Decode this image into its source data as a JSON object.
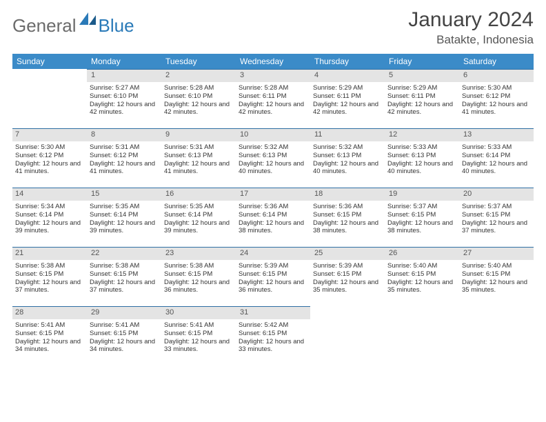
{
  "logo": {
    "general": "General",
    "blue": "Blue"
  },
  "title": "January 2024",
  "location": "Batakte, Indonesia",
  "header_bg": "#3b8bc8",
  "daynum_bg": "#e4e4e4",
  "daynum_border": "#2d6ea3",
  "weekdays": [
    "Sunday",
    "Monday",
    "Tuesday",
    "Wednesday",
    "Thursday",
    "Friday",
    "Saturday"
  ],
  "first_day_index": 1,
  "days": [
    {
      "n": "1",
      "sr": "5:27 AM",
      "ss": "6:10 PM",
      "dl": "12 hours and 42 minutes."
    },
    {
      "n": "2",
      "sr": "5:28 AM",
      "ss": "6:10 PM",
      "dl": "12 hours and 42 minutes."
    },
    {
      "n": "3",
      "sr": "5:28 AM",
      "ss": "6:11 PM",
      "dl": "12 hours and 42 minutes."
    },
    {
      "n": "4",
      "sr": "5:29 AM",
      "ss": "6:11 PM",
      "dl": "12 hours and 42 minutes."
    },
    {
      "n": "5",
      "sr": "5:29 AM",
      "ss": "6:11 PM",
      "dl": "12 hours and 42 minutes."
    },
    {
      "n": "6",
      "sr": "5:30 AM",
      "ss": "6:12 PM",
      "dl": "12 hours and 41 minutes."
    },
    {
      "n": "7",
      "sr": "5:30 AM",
      "ss": "6:12 PM",
      "dl": "12 hours and 41 minutes."
    },
    {
      "n": "8",
      "sr": "5:31 AM",
      "ss": "6:12 PM",
      "dl": "12 hours and 41 minutes."
    },
    {
      "n": "9",
      "sr": "5:31 AM",
      "ss": "6:13 PM",
      "dl": "12 hours and 41 minutes."
    },
    {
      "n": "10",
      "sr": "5:32 AM",
      "ss": "6:13 PM",
      "dl": "12 hours and 40 minutes."
    },
    {
      "n": "11",
      "sr": "5:32 AM",
      "ss": "6:13 PM",
      "dl": "12 hours and 40 minutes."
    },
    {
      "n": "12",
      "sr": "5:33 AM",
      "ss": "6:13 PM",
      "dl": "12 hours and 40 minutes."
    },
    {
      "n": "13",
      "sr": "5:33 AM",
      "ss": "6:14 PM",
      "dl": "12 hours and 40 minutes."
    },
    {
      "n": "14",
      "sr": "5:34 AM",
      "ss": "6:14 PM",
      "dl": "12 hours and 39 minutes."
    },
    {
      "n": "15",
      "sr": "5:35 AM",
      "ss": "6:14 PM",
      "dl": "12 hours and 39 minutes."
    },
    {
      "n": "16",
      "sr": "5:35 AM",
      "ss": "6:14 PM",
      "dl": "12 hours and 39 minutes."
    },
    {
      "n": "17",
      "sr": "5:36 AM",
      "ss": "6:14 PM",
      "dl": "12 hours and 38 minutes."
    },
    {
      "n": "18",
      "sr": "5:36 AM",
      "ss": "6:15 PM",
      "dl": "12 hours and 38 minutes."
    },
    {
      "n": "19",
      "sr": "5:37 AM",
      "ss": "6:15 PM",
      "dl": "12 hours and 38 minutes."
    },
    {
      "n": "20",
      "sr": "5:37 AM",
      "ss": "6:15 PM",
      "dl": "12 hours and 37 minutes."
    },
    {
      "n": "21",
      "sr": "5:38 AM",
      "ss": "6:15 PM",
      "dl": "12 hours and 37 minutes."
    },
    {
      "n": "22",
      "sr": "5:38 AM",
      "ss": "6:15 PM",
      "dl": "12 hours and 37 minutes."
    },
    {
      "n": "23",
      "sr": "5:38 AM",
      "ss": "6:15 PM",
      "dl": "12 hours and 36 minutes."
    },
    {
      "n": "24",
      "sr": "5:39 AM",
      "ss": "6:15 PM",
      "dl": "12 hours and 36 minutes."
    },
    {
      "n": "25",
      "sr": "5:39 AM",
      "ss": "6:15 PM",
      "dl": "12 hours and 35 minutes."
    },
    {
      "n": "26",
      "sr": "5:40 AM",
      "ss": "6:15 PM",
      "dl": "12 hours and 35 minutes."
    },
    {
      "n": "27",
      "sr": "5:40 AM",
      "ss": "6:15 PM",
      "dl": "12 hours and 35 minutes."
    },
    {
      "n": "28",
      "sr": "5:41 AM",
      "ss": "6:15 PM",
      "dl": "12 hours and 34 minutes."
    },
    {
      "n": "29",
      "sr": "5:41 AM",
      "ss": "6:15 PM",
      "dl": "12 hours and 34 minutes."
    },
    {
      "n": "30",
      "sr": "5:41 AM",
      "ss": "6:15 PM",
      "dl": "12 hours and 33 minutes."
    },
    {
      "n": "31",
      "sr": "5:42 AM",
      "ss": "6:15 PM",
      "dl": "12 hours and 33 minutes."
    }
  ],
  "labels": {
    "sunrise": "Sunrise:",
    "sunset": "Sunset:",
    "daylight": "Daylight:"
  }
}
